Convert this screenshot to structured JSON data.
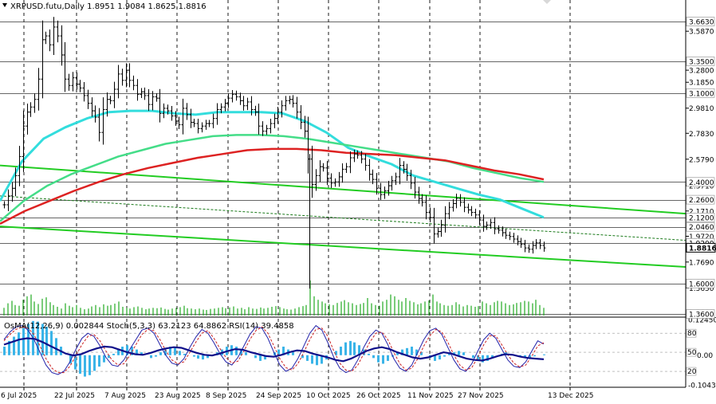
{
  "header": {
    "symbol_line": "XRPUSD.futu,Daily  1.8951 1.9084 1.8625 1.8816",
    "indicator_line": "OsMA(12,26,9) 0.002844  Stoch(5,3,3) 63.2123 64.8862  RSI(14) 39.4858"
  },
  "chart_data": {
    "type": "line",
    "title": "XRPUSD.futu,Daily",
    "main_ylim": [
      1.36,
      3.72
    ],
    "ohlc_last": {
      "open": 1.8951,
      "high": 1.9084,
      "low": 1.8625,
      "close": 1.8816
    },
    "price_ticks": [
      "3.5870",
      "3.2800",
      "3.1850",
      "2.9810",
      "2.7830",
      "2.5790",
      "2.3710",
      "2.1710",
      "1.9720",
      "1.7690",
      "1.5650"
    ],
    "price_levels": [
      {
        "label": "3.6630",
        "value": 3.663
      },
      {
        "label": "3.3500",
        "value": 3.35
      },
      {
        "label": "3.1000",
        "value": 3.1
      },
      {
        "label": "2.4000",
        "value": 2.4
      },
      {
        "label": "2.2600",
        "value": 2.26
      },
      {
        "label": "2.1200",
        "value": 2.12
      },
      {
        "label": "2.0460",
        "value": 2.046
      },
      {
        "label": "1.9200",
        "value": 1.92
      },
      {
        "label": "1.6000",
        "value": 1.6
      },
      {
        "label": "1.3600",
        "value": 1.36
      }
    ],
    "current_price_label": "1.8816",
    "x_labels": [
      "6 Jul 2025",
      "22 Jul 2025",
      "7 Aug 2025",
      "23 Aug 2025",
      "8 Sep 2025",
      "24 Sep 2025",
      "10 Oct 2025",
      "26 Oct 2025",
      "11 Nov 2025",
      "27 Nov 2025",
      "13 Dec 2025"
    ],
    "series": [
      {
        "name": "XRPUSD.futu",
        "values": [
          2.22,
          2.29,
          2.35,
          2.45,
          2.6,
          2.84,
          2.95,
          2.99,
          3.05,
          3.21,
          3.52,
          3.55,
          3.48,
          3.62,
          3.55,
          3.4,
          3.21,
          3.16,
          3.22,
          3.17,
          3.14,
          3.08,
          3.02,
          2.96,
          2.91,
          2.79,
          2.97,
          3.05,
          3.04,
          3.13,
          3.25,
          3.2,
          3.28,
          3.2,
          3.16,
          3.09,
          3.11,
          3.08,
          3.01,
          3.07,
          3.06,
          2.94,
          2.98,
          2.96,
          2.92,
          2.88,
          2.85,
          2.98,
          2.93,
          2.87,
          2.86,
          2.82,
          2.84,
          2.86,
          2.86,
          2.9,
          2.97,
          2.99,
          3.02,
          3.06,
          3.09,
          3.07,
          3.04,
          3.0,
          3.03,
          2.97,
          2.95,
          2.84,
          2.8,
          2.82,
          2.86,
          2.9,
          2.95,
          3.0,
          3.04,
          3.05,
          3.02,
          2.95,
          2.87,
          2.8,
          2.58,
          2.38,
          2.45,
          2.52,
          2.51,
          2.43,
          2.39,
          2.4,
          2.44,
          2.5,
          2.52,
          2.59,
          2.62,
          2.61,
          2.58,
          2.53,
          2.46,
          2.42,
          2.35,
          2.3,
          2.33,
          2.37,
          2.41,
          2.44,
          2.53,
          2.5,
          2.45,
          2.39,
          2.32,
          2.27,
          2.24,
          2.16,
          2.12,
          1.99,
          2.01,
          2.06,
          2.15,
          2.2,
          2.23,
          2.27,
          2.24,
          2.2,
          2.18,
          2.16,
          2.14,
          2.1,
          2.05,
          2.06,
          2.08,
          2.03,
          2.02,
          2.0,
          1.98,
          1.97,
          1.95,
          1.93,
          1.91,
          1.88,
          1.87,
          1.9,
          1.92,
          1.9,
          1.88
        ]
      },
      {
        "name": "EMA 50",
        "values": [
          2.25,
          2.56,
          2.74,
          2.83,
          2.9,
          2.95,
          2.96,
          2.96,
          2.94,
          2.93,
          2.95,
          2.95,
          2.95,
          2.94,
          2.88,
          2.79,
          2.67,
          2.6,
          2.54,
          2.45,
          2.4,
          2.35,
          2.3,
          2.26,
          2.19,
          2.12
        ]
      },
      {
        "name": "EMA 144",
        "values": [
          2.09,
          2.25,
          2.37,
          2.46,
          2.53,
          2.6,
          2.65,
          2.7,
          2.73,
          2.76,
          2.77,
          2.77,
          2.76,
          2.74,
          2.71,
          2.68,
          2.65,
          2.62,
          2.59,
          2.56,
          2.51,
          2.47,
          2.43,
          2.4
        ]
      },
      {
        "name": "EMA 200",
        "values": [
          2.07,
          2.17,
          2.25,
          2.33,
          2.4,
          2.46,
          2.51,
          2.55,
          2.59,
          2.62,
          2.65,
          2.66,
          2.66,
          2.65,
          2.63,
          2.62,
          2.61,
          2.59,
          2.57,
          2.53,
          2.49,
          2.46,
          2.42
        ]
      }
    ],
    "trend_channel": {
      "upper": [
        2.53,
        2.15
      ],
      "middle": [
        2.29,
        1.94
      ],
      "lower": [
        2.05,
        1.73
      ]
    },
    "volume_ylim": [
      0,
      1
    ],
    "volume": [
      0.22,
      0.35,
      0.42,
      0.3,
      0.28,
      0.45,
      0.55,
      0.6,
      0.4,
      0.33,
      0.48,
      0.52,
      0.38,
      0.3,
      0.25,
      0.2,
      0.35,
      0.28,
      0.24,
      0.3,
      0.22,
      0.18,
      0.2,
      0.26,
      0.3,
      0.24,
      0.32,
      0.28,
      0.3,
      0.34,
      0.4,
      0.25,
      0.22,
      0.2,
      0.24,
      0.26,
      0.22,
      0.18,
      0.2,
      0.22,
      0.21,
      0.23,
      0.19,
      0.17,
      0.2,
      0.22,
      0.24,
      0.28,
      0.21,
      0.2,
      0.18,
      0.2,
      0.17,
      0.16,
      0.19,
      0.2,
      0.22,
      0.24,
      0.21,
      0.23,
      0.26,
      0.2,
      0.22,
      0.18,
      0.24,
      0.2,
      0.19,
      0.23,
      0.2,
      0.22,
      0.25,
      0.27,
      0.24,
      0.2,
      0.18,
      0.17,
      0.2,
      0.24,
      0.27,
      0.3,
      1.0,
      0.55,
      0.45,
      0.4,
      0.35,
      0.32,
      0.3,
      0.36,
      0.4,
      0.44,
      0.38,
      0.35,
      0.3,
      0.33,
      0.36,
      0.5,
      0.35,
      0.3,
      0.28,
      0.4,
      0.45,
      0.6,
      0.55,
      0.45,
      0.4,
      0.5,
      0.42,
      0.38,
      0.32,
      0.35,
      0.4,
      0.43,
      0.6,
      0.4,
      0.35,
      0.3,
      0.28,
      0.3,
      0.38,
      0.32,
      0.26,
      0.3,
      0.28,
      0.25,
      0.27,
      0.4,
      0.35,
      0.3,
      0.38,
      0.42,
      0.4,
      0.35,
      0.3,
      0.32,
      0.36,
      0.38,
      0.42,
      0.4,
      0.35,
      0.45,
      0.3,
      0.22
    ],
    "osma_ticks": [
      "0.124506",
      "-0.10437"
    ],
    "osma_ylim": [
      -0.107,
      0.128
    ],
    "osma": [
      0.03,
      0.05,
      0.065,
      0.08,
      0.095,
      0.11,
      0.12,
      0.118,
      0.11,
      0.1,
      0.085,
      0.06,
      0.03,
      0.0,
      -0.03,
      -0.05,
      -0.065,
      -0.075,
      -0.07,
      -0.055,
      -0.04,
      -0.025,
      -0.01,
      0.005,
      0.02,
      0.03,
      0.035,
      0.03,
      0.02,
      0.01,
      0.0,
      -0.01,
      -0.005,
      0.01,
      0.02,
      0.03,
      0.025,
      0.015,
      0.005,
      0.0,
      -0.005,
      -0.012,
      -0.015,
      -0.01,
      0.0,
      0.01,
      0.02,
      0.03,
      0.035,
      0.03,
      0.02,
      0.01,
      0.0,
      -0.01,
      -0.02,
      -0.015,
      0.0,
      0.01,
      0.02,
      0.03,
      0.02,
      0.01,
      0.0,
      -0.01,
      -0.02,
      -0.03,
      -0.035,
      -0.03,
      -0.015,
      0.0,
      0.015,
      0.03,
      0.045,
      0.05,
      0.045,
      0.035,
      0.02,
      0.005,
      -0.01,
      -0.025,
      -0.03,
      -0.02,
      -0.005,
      0.01,
      0.02,
      0.025,
      0.03,
      0.02,
      0.01,
      0.0,
      -0.01,
      -0.02,
      -0.015,
      -0.005,
      0.005,
      0.01,
      0.015,
      0.01,
      0.0,
      -0.01,
      -0.02,
      -0.025,
      -0.02,
      -0.01,
      0.0,
      0.005,
      0.01,
      0.005,
      0.0,
      -0.005,
      -0.01,
      -0.008,
      -0.004,
      0.0,
      0.003
    ],
    "stoch_ylim": [
      0,
      100
    ],
    "stoch_levels": [
      "80",
      "50",
      "20"
    ],
    "stoch_main": [
      70,
      82,
      90,
      92,
      85,
      70,
      50,
      30,
      18,
      15,
      20,
      35,
      55,
      72,
      80,
      75,
      60,
      42,
      30,
      28,
      38,
      55,
      70,
      85,
      88,
      80,
      62,
      45,
      33,
      30,
      40,
      58,
      74,
      86,
      80,
      65,
      48,
      35,
      30,
      42,
      60,
      78,
      90,
      88,
      72,
      50,
      30,
      20,
      25,
      40,
      60,
      80,
      92,
      85,
      65,
      42,
      25,
      18,
      22,
      38,
      58,
      75,
      85,
      80,
      62,
      40,
      25,
      20,
      30,
      50,
      70,
      84,
      88,
      78,
      58,
      38,
      24,
      20,
      32,
      52,
      70,
      80,
      72,
      55,
      38,
      28,
      26,
      35,
      52,
      68,
      63
    ],
    "stoch_signal": [
      68,
      78,
      86,
      90,
      88,
      78,
      60,
      40,
      25,
      18,
      18,
      28,
      45,
      62,
      75,
      78,
      68,
      52,
      38,
      30,
      32,
      45,
      62,
      78,
      86,
      84,
      70,
      52,
      38,
      32,
      35,
      50,
      66,
      80,
      84,
      72,
      56,
      42,
      33,
      36,
      52,
      70,
      84,
      90,
      80,
      60,
      40,
      26,
      22,
      32,
      50,
      70,
      86,
      88,
      75,
      52,
      33,
      22,
      20,
      30,
      48,
      66,
      80,
      82,
      70,
      50,
      32,
      22,
      25,
      40,
      60,
      76,
      86,
      82,
      66,
      46,
      30,
      22,
      26,
      42,
      62,
      76,
      76,
      62,
      46,
      33,
      27,
      30,
      44,
      60,
      65
    ],
    "rsi": [
      62,
      66,
      70,
      72,
      71,
      66,
      60,
      54,
      48,
      45,
      47,
      52,
      56,
      59,
      58,
      54,
      50,
      47,
      46,
      49,
      53,
      56,
      58,
      57,
      53,
      49,
      46,
      45,
      48,
      52,
      55,
      54,
      50,
      47,
      44,
      43,
      46,
      50,
      53,
      52,
      48,
      45,
      42,
      38,
      36,
      40,
      46,
      52,
      56,
      58,
      55,
      50,
      46,
      42,
      40,
      42,
      46,
      50,
      48,
      44,
      40,
      38,
      37,
      40,
      44,
      47,
      46,
      43,
      41,
      40,
      39
    ]
  }
}
